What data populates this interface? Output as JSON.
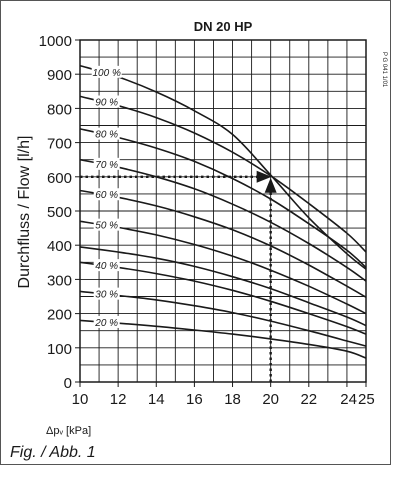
{
  "figure_caption": "Fig. / Abb. 1",
  "side_code": "P G 041 1/01",
  "colors": {
    "line": "#1a1a1a",
    "grid": "#1a1a1a",
    "frame": "#555555",
    "background": "#ffffff"
  },
  "chart_data": {
    "type": "line",
    "title": "DN 20 HP",
    "xlabel": "Δpᵥ [kPa]",
    "ylabel": "Durchfluss / Flow [l/h]",
    "xlim": [
      10,
      25
    ],
    "ylim": [
      0,
      1000
    ],
    "x_ticks": [
      10,
      12,
      14,
      16,
      18,
      20,
      22,
      24,
      25
    ],
    "x_tick_labels": [
      "10",
      "12",
      "14",
      "16",
      "18",
      "20",
      "22",
      "24",
      "25"
    ],
    "y_ticks": [
      0,
      100,
      200,
      300,
      400,
      500,
      600,
      700,
      800,
      900,
      1000
    ],
    "y_tick_labels": [
      "0",
      "100",
      "200",
      "300",
      "400",
      "500",
      "600",
      "700",
      "800",
      "900",
      "1000"
    ],
    "grid": true,
    "series": [
      {
        "name": "20 %",
        "x": [
          10,
          12,
          14,
          16,
          18,
          20,
          22,
          24,
          25
        ],
        "y": [
          180,
          172,
          163,
          152,
          140,
          126,
          110,
          90,
          70
        ]
      },
      {
        "name": "30 %",
        "x": [
          10,
          12,
          14,
          16,
          18,
          20,
          22,
          24,
          25
        ],
        "y": [
          265,
          253,
          240,
          223,
          203,
          178,
          150,
          120,
          105
        ]
      },
      {
        "name": "40 %",
        "x": [
          10,
          12,
          14,
          16,
          18,
          20,
          22,
          24,
          25
        ],
        "y": [
          350,
          335,
          317,
          295,
          268,
          236,
          200,
          162,
          140
        ]
      },
      {
        "name": "",
        "x": [
          10,
          12,
          14,
          16,
          18,
          20,
          22,
          24,
          25
        ],
        "y": [
          395,
          380,
          362,
          338,
          308,
          273,
          232,
          190,
          165
        ]
      },
      {
        "name": "50 %",
        "x": [
          10,
          12,
          14,
          16,
          18,
          20,
          22,
          24,
          25
        ],
        "y": [
          470,
          452,
          430,
          402,
          368,
          327,
          280,
          228,
          200
        ]
      },
      {
        "name": "60 %",
        "x": [
          10,
          12,
          14,
          16,
          18,
          20,
          22,
          24,
          25
        ],
        "y": [
          560,
          540,
          515,
          483,
          445,
          398,
          342,
          280,
          248
        ]
      },
      {
        "name": "70 %",
        "x": [
          10,
          12,
          14,
          16,
          18,
          20,
          22,
          24,
          25
        ],
        "y": [
          650,
          628,
          600,
          565,
          520,
          467,
          405,
          335,
          295
        ]
      },
      {
        "name": "80 %",
        "x": [
          10,
          12,
          14,
          16,
          18,
          20,
          22,
          24,
          25
        ],
        "y": [
          740,
          715,
          684,
          645,
          595,
          535,
          463,
          385,
          335
        ]
      },
      {
        "name": "90 %",
        "x": [
          10,
          12,
          14,
          16,
          18,
          20,
          22,
          24,
          25
        ],
        "y": [
          835,
          808,
          773,
          728,
          672,
          603,
          522,
          435,
          380
        ]
      },
      {
        "name": "100 %",
        "x": [
          10,
          12,
          14,
          16,
          18,
          20,
          22,
          24,
          25
        ],
        "y": [
          925,
          892,
          848,
          793,
          724,
          605,
          480,
          375,
          330
        ]
      }
    ],
    "reading": {
      "x": 20,
      "y": 600,
      "style": "dotted"
    }
  }
}
